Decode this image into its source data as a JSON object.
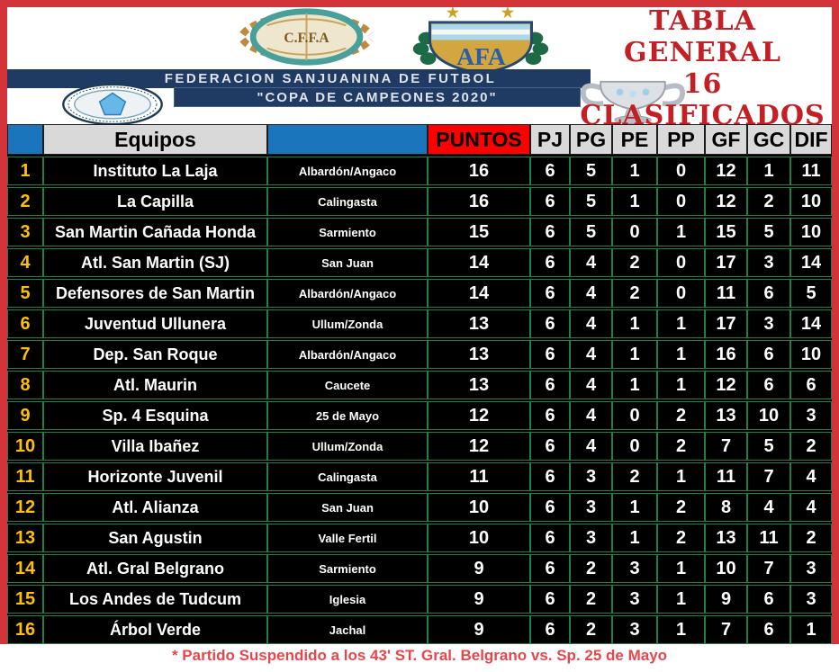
{
  "header": {
    "title_line1": "TABLA GENERAL",
    "title_line2": "16 CLASIFICADOS",
    "cefa_label": "C.F.F.A",
    "afa_label": "AFA",
    "banner_title": "FEDERACION SANJUANINA DE FUTBOL",
    "banner_subtitle": "\"COPA DE CAMPEONES 2020\""
  },
  "colors": {
    "frame_red": "#d23439",
    "title_red": "#c32026",
    "banner_navy": "#1f3a63",
    "header_blue": "#1b75bc",
    "header_gray": "#d9d9d9",
    "puntos_red": "#fe0000",
    "grid_green": "#1e8048",
    "row_black": "#000000",
    "position_gold": "#ffc000",
    "footer_red": "#e8464b"
  },
  "table": {
    "headers": {
      "equipos": "Equipos",
      "puntos": "PUNTOS",
      "stats": [
        "PJ",
        "PG",
        "PE",
        "PP",
        "GF",
        "GC",
        "DIF"
      ]
    },
    "rows": [
      {
        "pos": "1",
        "team": "Instituto La Laja",
        "region": "Albardón/Angaco",
        "puntos": "16",
        "pj": "6",
        "pg": "5",
        "pe": "1",
        "pp": "0",
        "gf": "12",
        "gc": "1",
        "dif": "11"
      },
      {
        "pos": "2",
        "team": "La Capilla",
        "region": "Calingasta",
        "puntos": "16",
        "pj": "6",
        "pg": "5",
        "pe": "1",
        "pp": "0",
        "gf": "12",
        "gc": "2",
        "dif": "10"
      },
      {
        "pos": "3",
        "team": "San Martin Cañada Honda",
        "region": "Sarmiento",
        "puntos": "15",
        "pj": "6",
        "pg": "5",
        "pe": "0",
        "pp": "1",
        "gf": "15",
        "gc": "5",
        "dif": "10"
      },
      {
        "pos": "4",
        "team": "Atl. San Martin (SJ)",
        "region": "San Juan",
        "puntos": "14",
        "pj": "6",
        "pg": "4",
        "pe": "2",
        "pp": "0",
        "gf": "17",
        "gc": "3",
        "dif": "14"
      },
      {
        "pos": "5",
        "team": "Defensores de San Martin",
        "region": "Albardón/Angaco",
        "puntos": "14",
        "pj": "6",
        "pg": "4",
        "pe": "2",
        "pp": "0",
        "gf": "11",
        "gc": "6",
        "dif": "5"
      },
      {
        "pos": "6",
        "team": "Juventud Ullunera",
        "region": "Ullum/Zonda",
        "puntos": "13",
        "pj": "6",
        "pg": "4",
        "pe": "1",
        "pp": "1",
        "gf": "17",
        "gc": "3",
        "dif": "14"
      },
      {
        "pos": "7",
        "team": "Dep. San Roque",
        "region": "Albardón/Angaco",
        "puntos": "13",
        "pj": "6",
        "pg": "4",
        "pe": "1",
        "pp": "1",
        "gf": "16",
        "gc": "6",
        "dif": "10"
      },
      {
        "pos": "8",
        "team": "Atl. Maurin",
        "region": "Caucete",
        "puntos": "13",
        "pj": "6",
        "pg": "4",
        "pe": "1",
        "pp": "1",
        "gf": "12",
        "gc": "6",
        "dif": "6"
      },
      {
        "pos": "9",
        "team": "Sp. 4 Esquina",
        "region": "25 de Mayo",
        "puntos": "12",
        "pj": "6",
        "pg": "4",
        "pe": "0",
        "pp": "2",
        "gf": "13",
        "gc": "10",
        "dif": "3"
      },
      {
        "pos": "10",
        "team": "Villa Ibañez",
        "region": "Ullum/Zonda",
        "puntos": "12",
        "pj": "6",
        "pg": "4",
        "pe": "0",
        "pp": "2",
        "gf": "7",
        "gc": "5",
        "dif": "2"
      },
      {
        "pos": "11",
        "team": "Horizonte Juvenil",
        "region": "Calingasta",
        "puntos": "11",
        "pj": "6",
        "pg": "3",
        "pe": "2",
        "pp": "1",
        "gf": "11",
        "gc": "7",
        "dif": "4"
      },
      {
        "pos": "12",
        "team": "Atl. Alianza",
        "region": "San Juan",
        "puntos": "10",
        "pj": "6",
        "pg": "3",
        "pe": "1",
        "pp": "2",
        "gf": "8",
        "gc": "4",
        "dif": "4"
      },
      {
        "pos": "13",
        "team": "San Agustin",
        "region": "Valle Fertil",
        "puntos": "10",
        "pj": "6",
        "pg": "3",
        "pe": "1",
        "pp": "2",
        "gf": "13",
        "gc": "11",
        "dif": "2"
      },
      {
        "pos": "14",
        "team": "Atl. Gral Belgrano",
        "region": "Sarmiento",
        "puntos": "9",
        "pj": "6",
        "pg": "2",
        "pe": "3",
        "pp": "1",
        "gf": "10",
        "gc": "7",
        "dif": "3"
      },
      {
        "pos": "15",
        "team": "Los Andes de Tudcum",
        "region": "Iglesia",
        "puntos": "9",
        "pj": "6",
        "pg": "2",
        "pe": "3",
        "pp": "1",
        "gf": "9",
        "gc": "6",
        "dif": "3"
      },
      {
        "pos": "16",
        "team": "Árbol Verde",
        "region": "Jachal",
        "puntos": "9",
        "pj": "6",
        "pg": "2",
        "pe": "3",
        "pp": "1",
        "gf": "7",
        "gc": "6",
        "dif": "1"
      }
    ]
  },
  "footer": {
    "note": "* Partido Suspendido a los 43' ST. Gral. Belgrano vs. Sp. 25 de Mayo"
  }
}
